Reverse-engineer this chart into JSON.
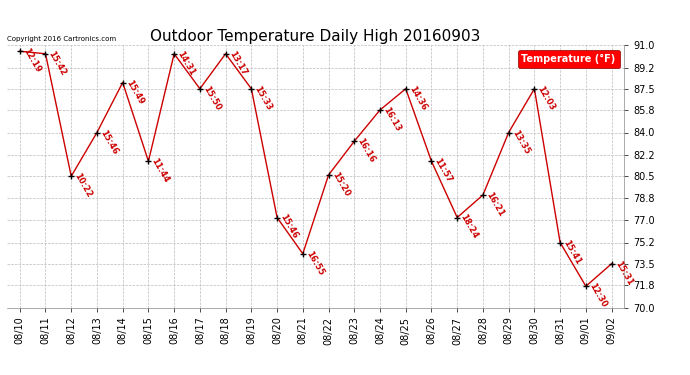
{
  "title": "Outdoor Temperature Daily High 20160903",
  "copyright_text": "Copyright 2016 Cartronics.com",
  "legend_label": "Temperature (°F)",
  "dates": [
    "08/10",
    "08/11",
    "08/12",
    "08/13",
    "08/14",
    "08/15",
    "08/16",
    "08/17",
    "08/18",
    "08/19",
    "08/20",
    "08/21",
    "08/22",
    "08/23",
    "08/24",
    "08/25",
    "08/26",
    "08/27",
    "08/28",
    "08/29",
    "08/30",
    "08/31",
    "09/01",
    "09/02"
  ],
  "temps": [
    90.5,
    90.3,
    80.5,
    84.0,
    88.0,
    81.7,
    90.3,
    87.5,
    90.3,
    87.5,
    77.2,
    74.3,
    80.6,
    83.3,
    85.8,
    87.5,
    81.7,
    77.2,
    79.0,
    84.0,
    87.5,
    75.2,
    71.7,
    73.5
  ],
  "time_labels": [
    "12:19",
    "15:42",
    "10:22",
    "15:46",
    "15:49",
    "11:44",
    "14:31",
    "15:50",
    "13:17",
    "15:33",
    "15:46",
    "16:55",
    "15:20",
    "16:16",
    "16:13",
    "14:36",
    "11:57",
    "18:24",
    "16:21",
    "13:35",
    "12:03",
    "15:41",
    "12:30",
    "15:31"
  ],
  "ylim": [
    70.0,
    91.0
  ],
  "yticks": [
    70.0,
    71.8,
    73.5,
    75.2,
    77.0,
    78.8,
    80.5,
    82.2,
    84.0,
    85.8,
    87.5,
    89.2,
    91.0
  ],
  "line_color": "#cc0000",
  "marker_color": "#000000",
  "label_color": "#cc0000",
  "bg_color": "#ffffff",
  "grid_color": "#bbbbbb",
  "title_fontsize": 11,
  "tick_fontsize": 7,
  "annot_fontsize": 6
}
